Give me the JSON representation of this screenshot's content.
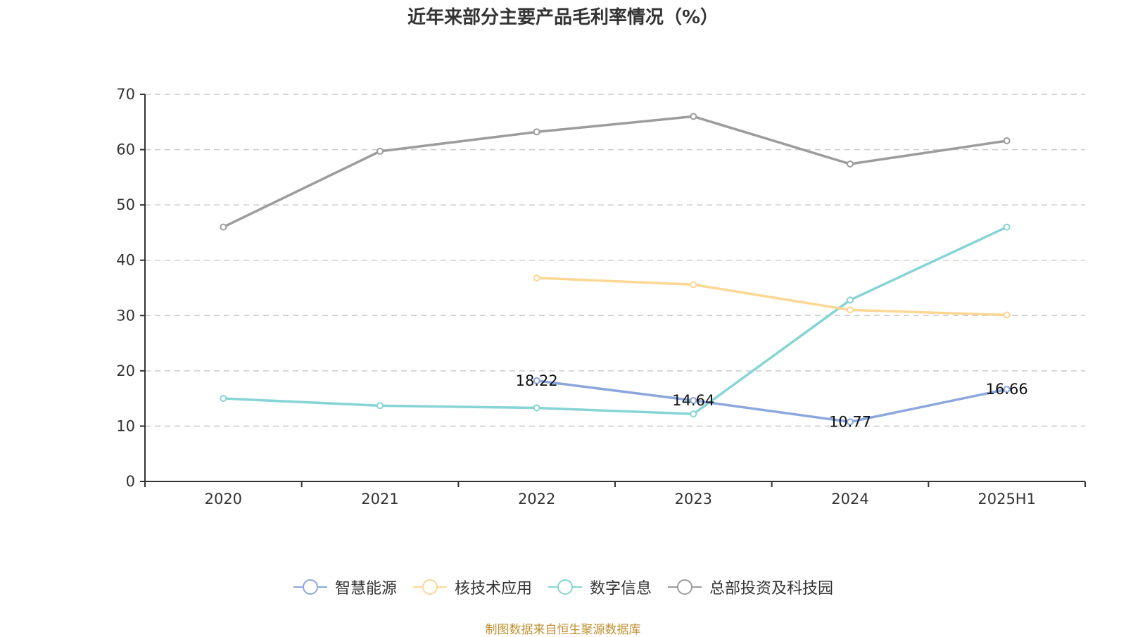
{
  "chart_data": {
    "type": "line",
    "title": "近年来部分主要产品毛利率情况（%）",
    "xlabel": "",
    "ylabel": "",
    "categories": [
      "2020",
      "2021",
      "2022",
      "2023",
      "2024",
      "2025H1"
    ],
    "ylim": [
      0,
      70
    ],
    "yticks": [
      0,
      10,
      20,
      30,
      40,
      50,
      60,
      70
    ],
    "grid": true,
    "legend_position": "bottom",
    "series": [
      {
        "name": "智慧能源",
        "color": "#8ba7dc",
        "values": [
          null,
          null,
          18.22,
          14.64,
          10.77,
          16.66
        ],
        "labels": [
          "",
          "",
          "18.22",
          "14.64",
          "10.77",
          "16.66"
        ]
      },
      {
        "name": "核技术应用",
        "color": "#fcd794",
        "values": [
          null,
          null,
          36.8,
          35.6,
          31.0,
          30.1
        ],
        "labels": []
      },
      {
        "name": "数字信息",
        "color": "#86d4d5",
        "values": [
          15.0,
          13.7,
          13.3,
          12.2,
          32.8,
          46.0
        ],
        "labels": []
      },
      {
        "name": "总部投资及科技园",
        "color": "#9c9c9c",
        "values": [
          46.0,
          59.7,
          63.2,
          66.0,
          57.4,
          61.6
        ],
        "labels": []
      }
    ]
  },
  "footer": {
    "source": "制图数据来自恒生聚源数据库"
  }
}
